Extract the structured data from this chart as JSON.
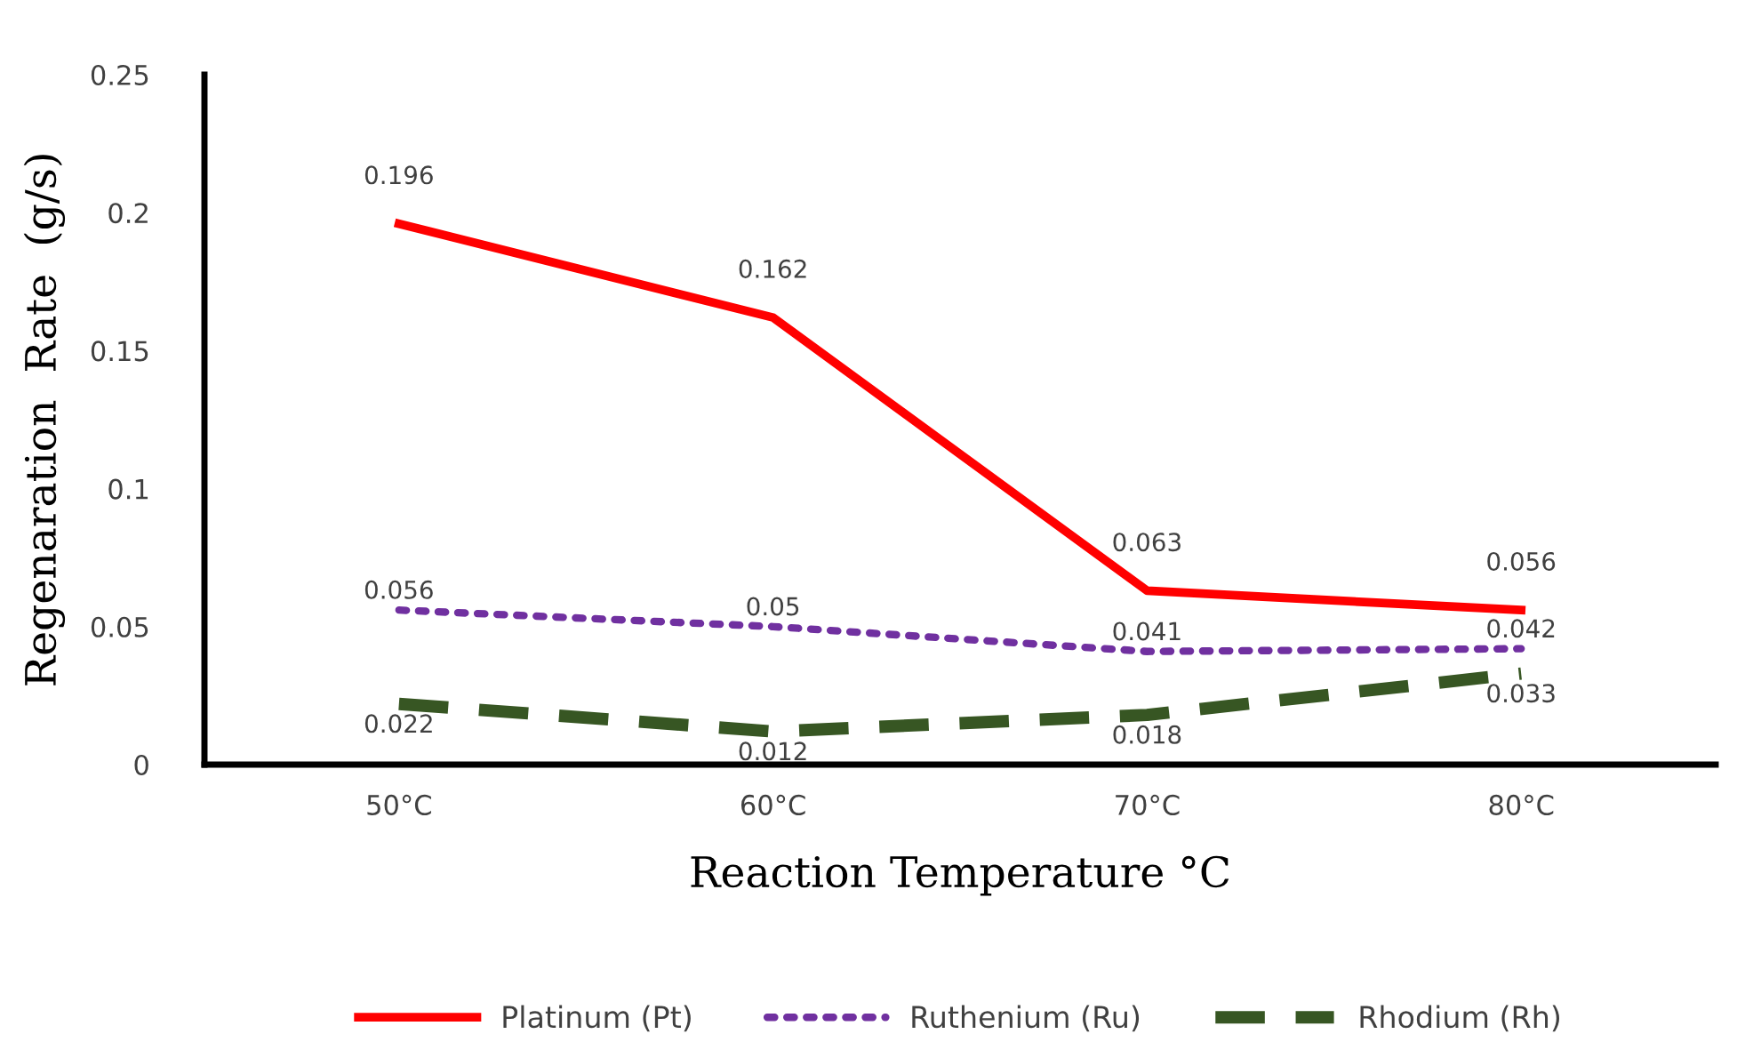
{
  "chart_data": {
    "type": "line",
    "xlabel": "Reaction Temperature °C",
    "ylabel": "Regenaration  Rate  (g/s)",
    "categories": [
      "50°C",
      "60°C",
      "70°C",
      "80°C"
    ],
    "series": [
      {
        "name": "Platinum (Pt)",
        "color": "#ff0000",
        "line_style": "solid",
        "values": [
          0.196,
          0.162,
          0.063,
          0.056
        ]
      },
      {
        "name": "Ruthenium (Ru)",
        "color": "#7030a0",
        "line_style": "dotted",
        "values": [
          0.056,
          0.05,
          0.041,
          0.042
        ]
      },
      {
        "name": "Rhodium (Rh)",
        "color": "#375623",
        "line_style": "dashed",
        "values": [
          0.022,
          0.012,
          0.018,
          0.033
        ]
      }
    ],
    "ylim": [
      0,
      0.25
    ],
    "yticks": [
      0,
      0.05,
      0.1,
      0.15,
      0.2,
      0.25
    ],
    "grid": false,
    "legend": "bottom",
    "data_labels": true,
    "marker": "none"
  }
}
